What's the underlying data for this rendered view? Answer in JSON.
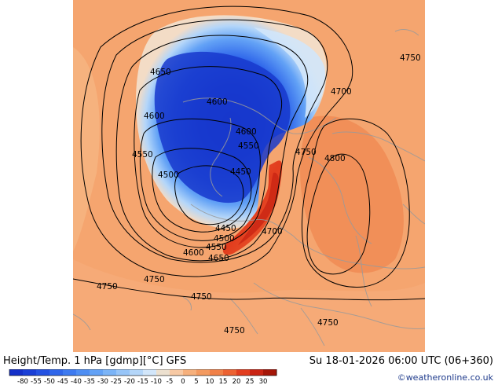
{
  "title": "Height/Temp. 1 hPa [gdmp][°C] GFS",
  "valid_time": "Su 18-01-2026 06:00 UTC (06+360)",
  "credit": "©weatheronline.co.uk",
  "legend": {
    "values": [
      "-80",
      "-55",
      "-50",
      "-45",
      "-40",
      "-35",
      "-30",
      "-25",
      "-20",
      "-15",
      "-10",
      "-5",
      "0",
      "5",
      "10",
      "15",
      "20",
      "25",
      "30"
    ],
    "colors": [
      "#1430c8",
      "#1a3fd6",
      "#2452e2",
      "#2f66ea",
      "#3d7af0",
      "#4e8ef3",
      "#63a2f6",
      "#7bb4f7",
      "#97c5f8",
      "#b4d6f9",
      "#d2e6fa",
      "#ece0cf",
      "#f7c9a4",
      "#f6b07c",
      "#f39a60",
      "#f08047",
      "#ec6232",
      "#e23d1e",
      "#c92413",
      "#a51608"
    ]
  },
  "contour_labels": [
    {
      "text": "4650"
    },
    {
      "text": "4600"
    },
    {
      "text": "4550"
    },
    {
      "text": "4500"
    },
    {
      "text": "4600"
    },
    {
      "text": "4600"
    },
    {
      "text": "4550"
    },
    {
      "text": "4450"
    },
    {
      "text": "4450"
    },
    {
      "text": "4500"
    },
    {
      "text": "4550"
    },
    {
      "text": "4600"
    },
    {
      "text": "4650"
    },
    {
      "text": "4700"
    },
    {
      "text": "4750"
    },
    {
      "text": "4800"
    },
    {
      "text": "4700"
    },
    {
      "text": "4750"
    },
    {
      "text": "4750"
    },
    {
      "text": "4750"
    },
    {
      "text": "4750"
    },
    {
      "text": "4750"
    },
    {
      "text": "4750"
    }
  ]
}
